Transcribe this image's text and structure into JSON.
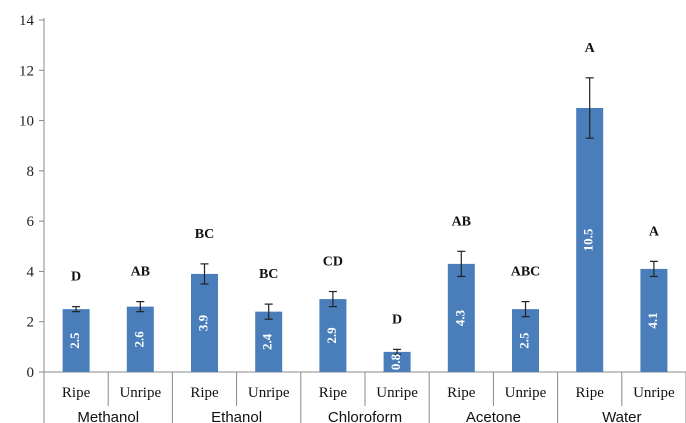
{
  "chart_data": {
    "type": "bar",
    "title": "",
    "xlabel": "",
    "ylabel": "",
    "ylim": [
      0,
      14
    ],
    "yticks": [
      0,
      2,
      4,
      6,
      8,
      10,
      12,
      14
    ],
    "ytick_labels": [
      "0",
      "2",
      "4",
      "6",
      "8",
      "10",
      "12",
      "14"
    ],
    "grid": false,
    "bar_color": "#4a7ebb",
    "error_bar_color": "#222222",
    "groups": [
      "Methanol",
      "Ethanol",
      "Chloroform",
      "Acetone",
      "Water"
    ],
    "categories": [
      "Ripe",
      "Unripe",
      "Ripe",
      "Unripe",
      "Ripe",
      "Unripe",
      "Ripe",
      "Unripe",
      "Ripe",
      "Unripe"
    ],
    "values": [
      2.5,
      2.6,
      3.9,
      2.4,
      2.9,
      0.8,
      4.3,
      2.5,
      10.5,
      4.1
    ],
    "value_labels": [
      "2.5",
      "2.6",
      "3.9",
      "2.4",
      "2.9",
      "0.8",
      "4.3",
      "2.5",
      "10.5",
      "4.1"
    ],
    "errors": [
      0.1,
      0.2,
      0.4,
      0.3,
      0.3,
      0.1,
      0.5,
      0.3,
      1.2,
      0.3
    ],
    "significance": [
      "D",
      "AB",
      "BC",
      "BC",
      "CD",
      "D",
      "AB",
      "ABC",
      "A",
      "A"
    ]
  }
}
